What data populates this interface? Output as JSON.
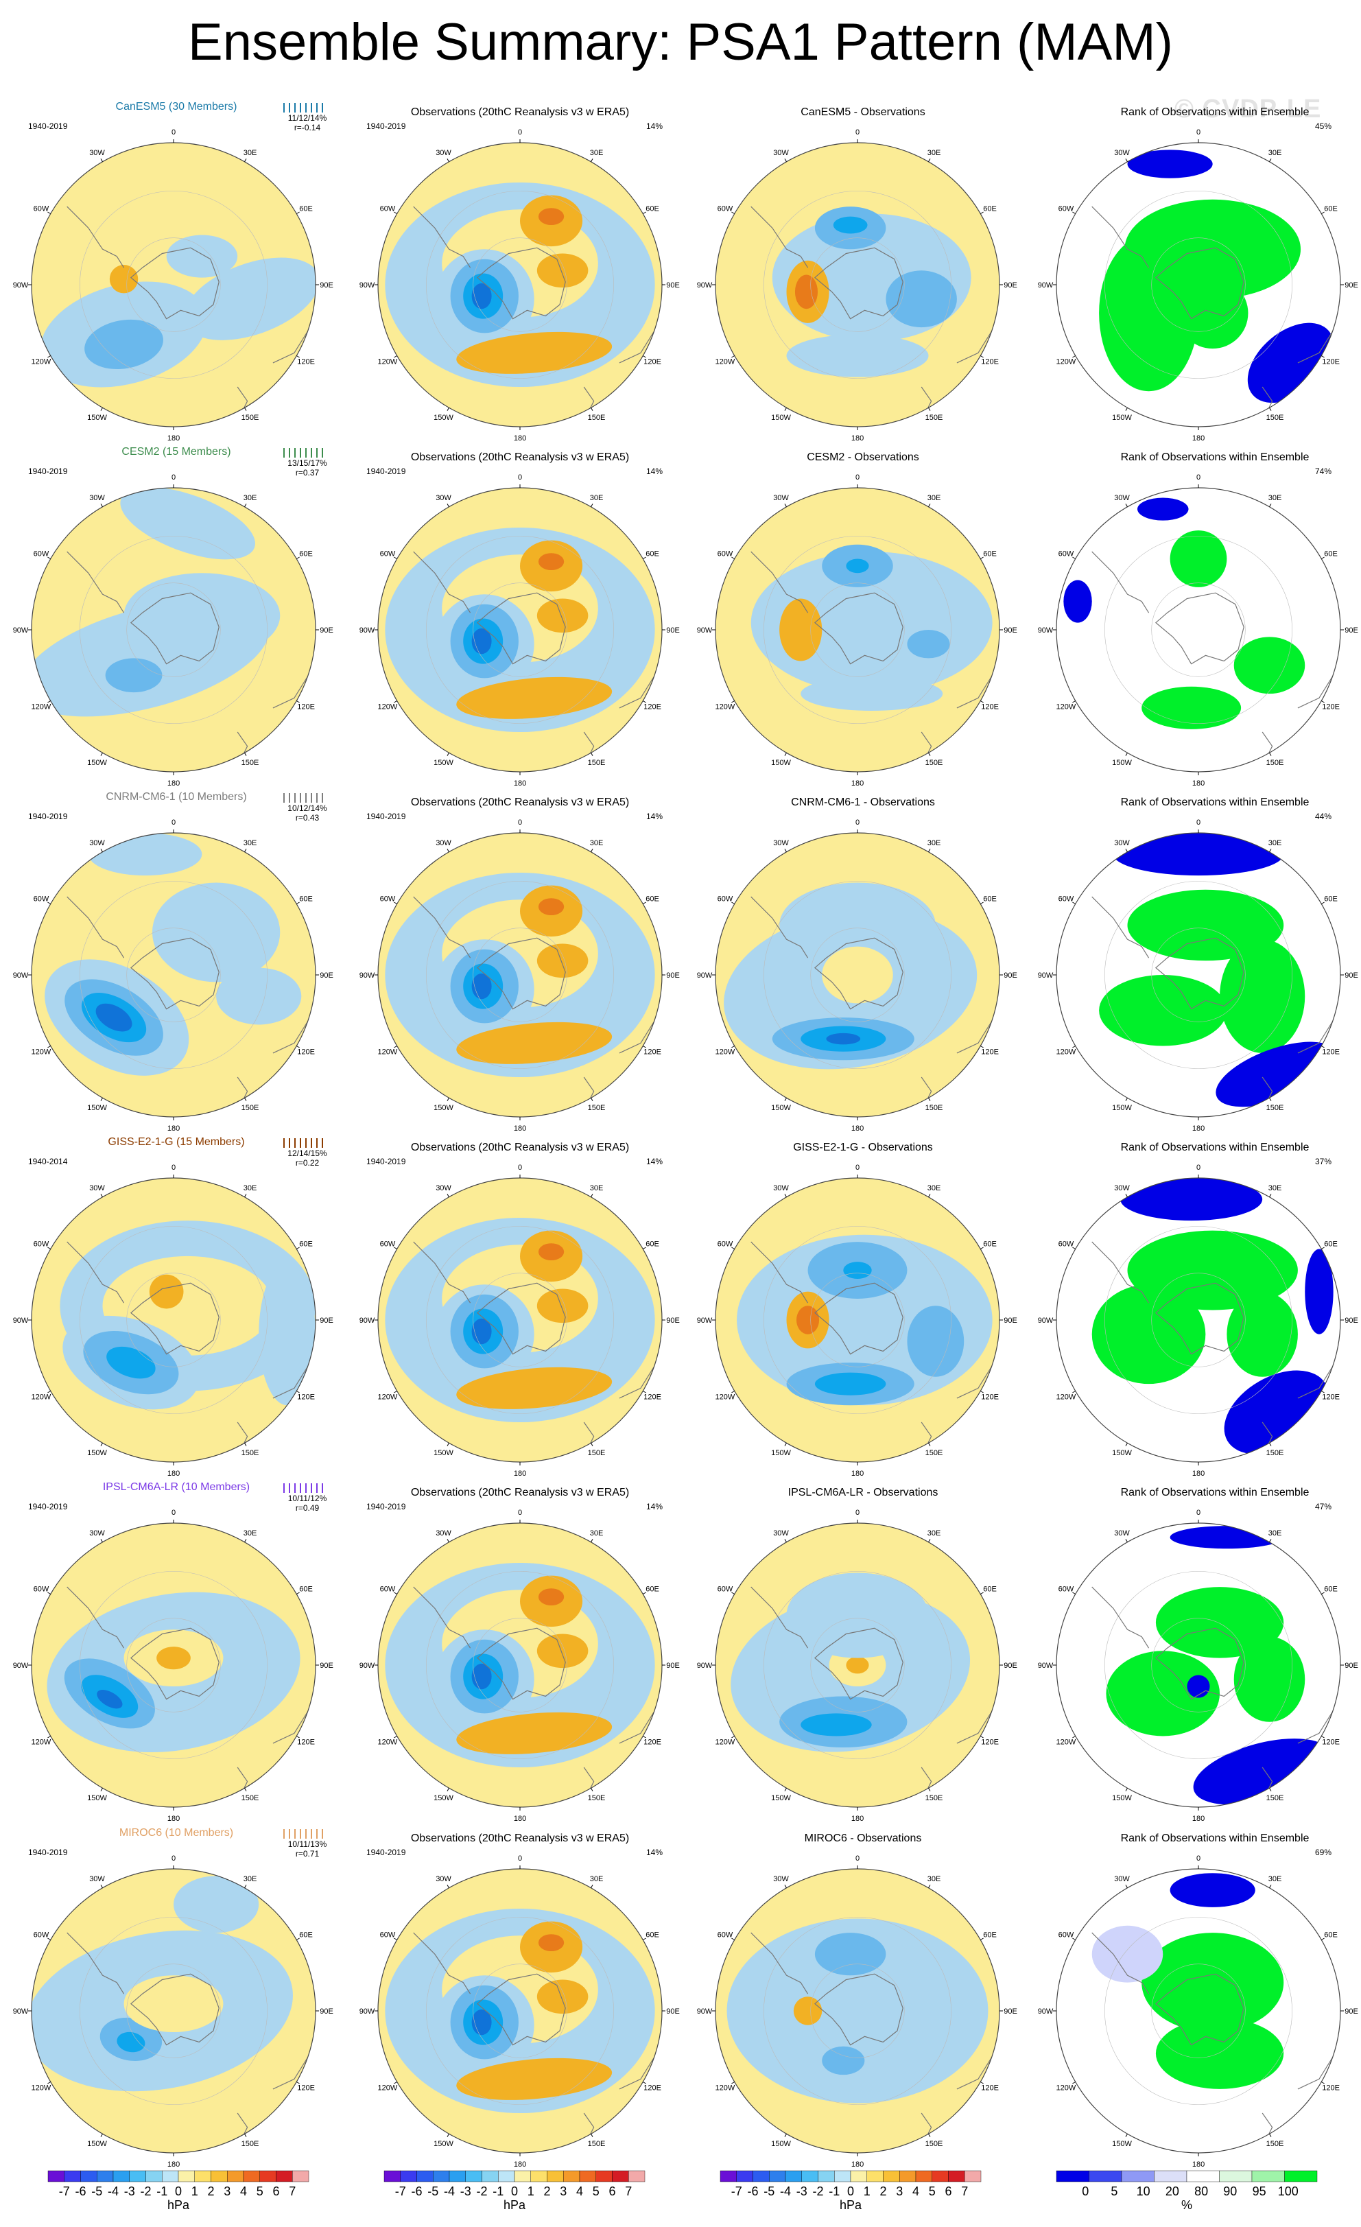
{
  "title": "Ensemble Summary: PSA1 Pattern (MAM)",
  "watermark": "© CVDP-LE",
  "colors": {
    "strong_pos": "#e87b1a",
    "pos2": "#f2b124",
    "pos1": "#fbec96",
    "neg1": "#acd6ef",
    "neg2": "#6ab8ec",
    "neg3": "#0ea6ec",
    "neg4": "#1073d8",
    "rank_high": "#00f02a",
    "rank_midhigh": "#c8f7cd",
    "rank_low": "#0000e6",
    "rank_midlow": "#cfd4fb",
    "coast": "#777777"
  },
  "lon_labels": [
    "0",
    "30E",
    "60E",
    "90E",
    "120E",
    "150E",
    "180",
    "150W",
    "120W",
    "90W",
    "60W",
    "30W"
  ],
  "chart_data": [
    {
      "type": "map",
      "row": 1,
      "model_title": "CanESM5 (30 Members)",
      "model_color": "#1a7aa8",
      "period": "1940-2019",
      "stats": "11/12/14%",
      "r_value": "r=-0.14",
      "obs_title": "Observations (20thC Reanalysis v3 w ERA5)",
      "obs_period": "1940-2019",
      "obs_pct": "14%",
      "diff_title": "CanESM5 - Observations",
      "rank_title": "Rank of Observations within Ensemble",
      "rank_pct": "45%"
    },
    {
      "type": "map",
      "row": 2,
      "model_title": "CESM2 (15 Members)",
      "model_color": "#3c8c4c",
      "period": "1940-2019",
      "stats": "13/15/17%",
      "r_value": "r=0.37",
      "obs_title": "Observations (20thC Reanalysis v3 w ERA5)",
      "obs_period": "1940-2019",
      "obs_pct": "14%",
      "diff_title": "CESM2 - Observations",
      "rank_title": "Rank of Observations within Ensemble",
      "rank_pct": "74%"
    },
    {
      "type": "map",
      "row": 3,
      "model_title": "CNRM-CM6-1 (10 Members)",
      "model_color": "#7d7d7d",
      "period": "1940-2019",
      "stats": "10/12/14%",
      "r_value": "r=0.43",
      "obs_title": "Observations (20thC Reanalysis v3 w ERA5)",
      "obs_period": "1940-2019",
      "obs_pct": "14%",
      "diff_title": "CNRM-CM6-1 - Observations",
      "rank_title": "Rank of Observations within Ensemble",
      "rank_pct": "44%"
    },
    {
      "type": "map",
      "row": 4,
      "model_title": "GISS-E2-1-G (15 Members)",
      "model_color": "#8c3c00",
      "period": "1940-2014",
      "stats": "12/14/15%",
      "r_value": "r=0.22",
      "obs_title": "Observations (20thC Reanalysis v3 w ERA5)",
      "obs_period": "1940-2019",
      "obs_pct": "14%",
      "diff_title": "GISS-E2-1-G - Observations",
      "rank_title": "Rank of Observations within Ensemble",
      "rank_pct": "37%"
    },
    {
      "type": "map",
      "row": 5,
      "model_title": "IPSL-CM6A-LR (10 Members)",
      "model_color": "#7b3ae6",
      "period": "1940-2019",
      "stats": "10/11/12%",
      "r_value": "r=0.49",
      "obs_title": "Observations (20thC Reanalysis v3 w ERA5)",
      "obs_period": "1940-2019",
      "obs_pct": "14%",
      "diff_title": "IPSL-CM6A-LR - Observations",
      "rank_title": "Rank of Observations within Ensemble",
      "rank_pct": "47%"
    },
    {
      "type": "map",
      "row": 6,
      "model_title": "MIROC6 (10 Members)",
      "model_color": "#e0a064",
      "period": "1940-2019",
      "stats": "10/11/13%",
      "r_value": "r=0.71",
      "obs_title": "Observations (20thC Reanalysis v3 w ERA5)",
      "obs_period": "1940-2019",
      "obs_pct": "14%",
      "diff_title": "MIROC6 - Observations",
      "rank_title": "Rank of Observations within Ensemble",
      "rank_pct": "69%"
    }
  ],
  "colorbar_hpa": {
    "labels": [
      "-7",
      "-6",
      "-5",
      "-4",
      "-3",
      "-2",
      "-1",
      "0",
      "1",
      "2",
      "3",
      "4",
      "5",
      "6",
      "7"
    ],
    "colors": [
      "#6a0fd6",
      "#3b3bf0",
      "#2c5cf0",
      "#2e7fec",
      "#2a9ff0",
      "#49bdf4",
      "#86d3f2",
      "#bde5f7",
      "#fbf1a8",
      "#fde06a",
      "#f8c036",
      "#f49a2a",
      "#ef6a22",
      "#e63a22",
      "#d41c24",
      "#f2a9a9"
    ],
    "unit": "hPa"
  },
  "colorbar_rank": {
    "labels": [
      "0",
      "5",
      "10",
      "20",
      "80",
      "90",
      "95",
      "100"
    ],
    "colors": [
      "#0000e6",
      "#3b48f0",
      "#8f99f5",
      "#dcdff8",
      "#ffffff",
      "#dcf7de",
      "#9ff3a9",
      "#00f02a"
    ],
    "unit": "%"
  }
}
